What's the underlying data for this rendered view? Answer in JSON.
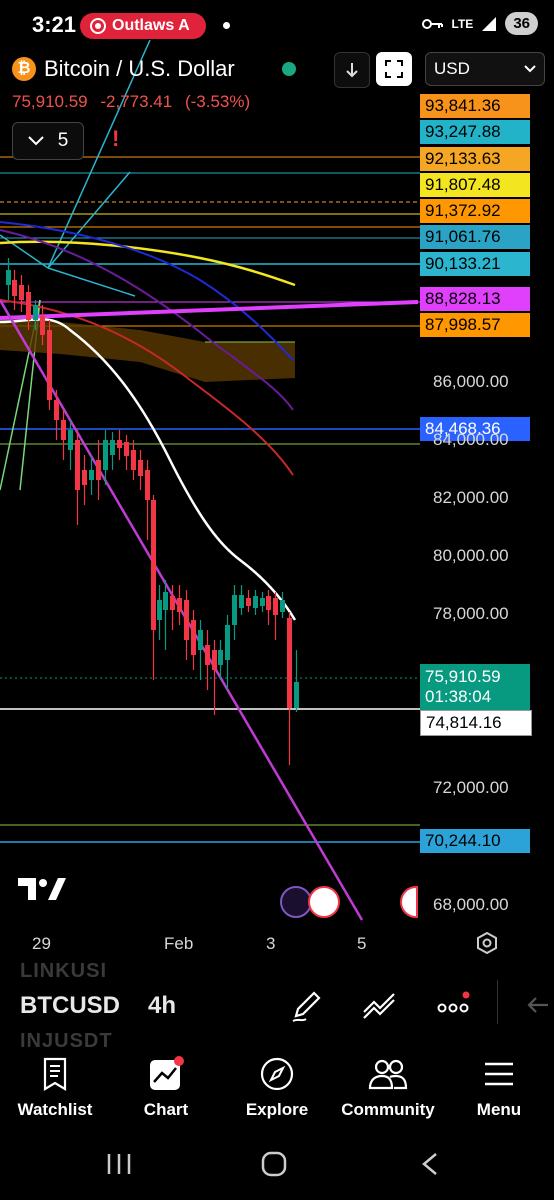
{
  "status_bar": {
    "time": "3:21",
    "notification": "Outlaws A",
    "network": "LTE",
    "battery": "36"
  },
  "header": {
    "symbol_title": "Bitcoin / U.S. Dollar",
    "btc_icon": "₿",
    "last_price": "75,910.59",
    "change": "-2,773.41",
    "change_pct": "(-3.53%)",
    "indicator_count": "5",
    "currency": "USD"
  },
  "price_scale": {
    "levels": [
      {
        "value": "93,841.36",
        "bg": "#f7931a",
        "color": "#000"
      },
      {
        "value": "93,247.88",
        "bg": "#22b3c9",
        "color": "#000"
      },
      {
        "value": "92,133.63",
        "bg": "#f5a623",
        "color": "#000"
      },
      {
        "value": "91,807.48",
        "bg": "#f3e51f",
        "color": "#000"
      },
      {
        "value": "91,372.92",
        "bg": "#ff9800",
        "color": "#000"
      },
      {
        "value": "91,061.76",
        "bg": "#2aa3c4",
        "color": "#000"
      },
      {
        "value": "90,133.21",
        "bg": "#2bb5cf",
        "color": "#000"
      },
      {
        "value": "88,828.13",
        "bg": "#e040fb",
        "color": "#000"
      },
      {
        "value": "87,998.57",
        "bg": "#ff9800",
        "color": "#000"
      },
      {
        "value": "84,468.36",
        "bg": "#2962ff",
        "color": "#fff"
      },
      {
        "value": "75,910.59",
        "sub": "01:38:04",
        "bg": "#089981",
        "color": "#fff"
      },
      {
        "value": "74,814.16",
        "bg": "#ffffff",
        "color": "#000"
      },
      {
        "value": "70,244.10",
        "bg": "#2ba3d9",
        "color": "#000"
      }
    ],
    "axis_ticks": [
      "86,000.00",
      "84,000.00",
      "82,000.00",
      "80,000.00",
      "78,000.00",
      "72,000.00",
      "68,000.00"
    ]
  },
  "time_axis": [
    "29",
    "Feb",
    "3",
    "5"
  ],
  "toolbar": {
    "ghost_top": "LINKUSI",
    "symbol": "BTCUSD",
    "interval": "4h",
    "ghost_bottom": "INJUSDT"
  },
  "bottom_nav": [
    {
      "label": "Watchlist",
      "icon": "watchlist-icon"
    },
    {
      "label": "Chart",
      "icon": "chart-icon"
    },
    {
      "label": "Explore",
      "icon": "compass-icon"
    },
    {
      "label": "Community",
      "icon": "community-icon"
    },
    {
      "label": "Menu",
      "icon": "menu-icon"
    }
  ],
  "colors": {
    "up": "#089981",
    "down": "#f23645",
    "accent": "#2962ff"
  }
}
